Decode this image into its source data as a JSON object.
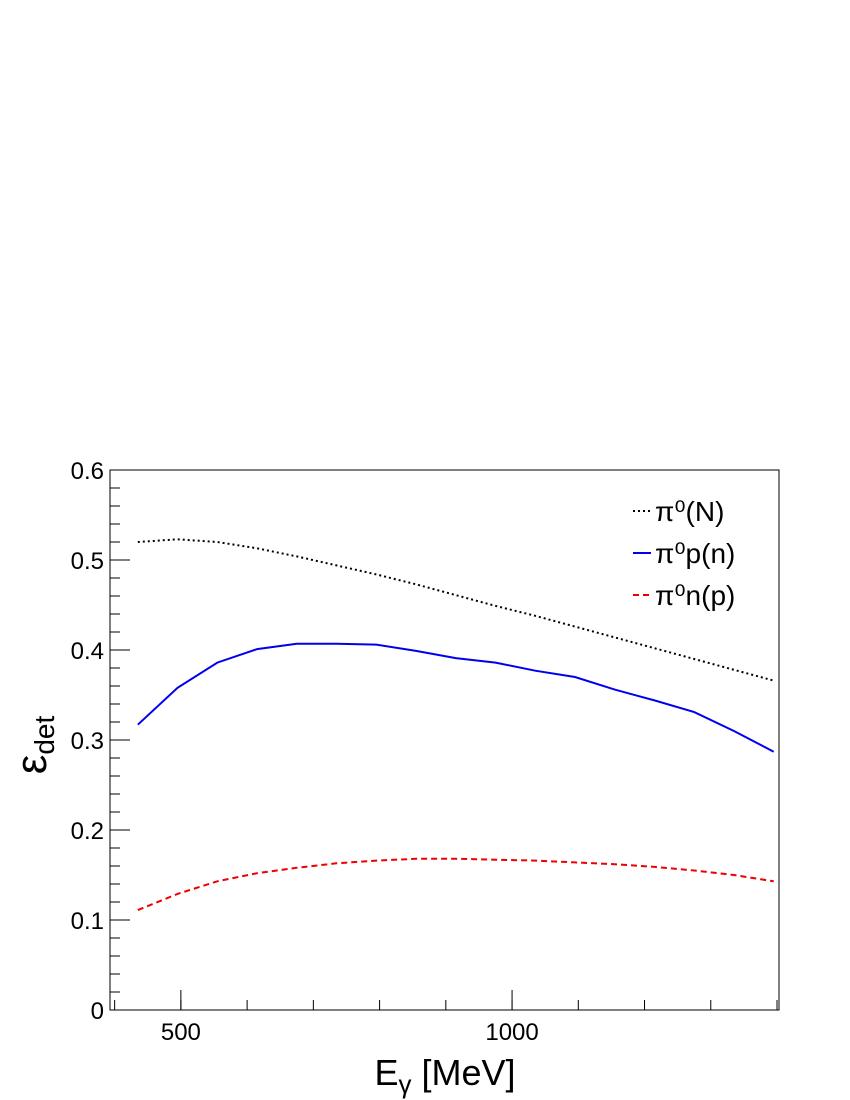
{
  "chart_data": {
    "type": "line",
    "x": [
      435,
      495,
      555,
      615,
      675,
      735,
      795,
      855,
      915,
      975,
      1035,
      1095,
      1155,
      1215,
      1275,
      1335,
      1395
    ],
    "series": [
      {
        "name": "π⁰(N)",
        "color": "#000000",
        "dash": "dotted",
        "values": [
          0.52,
          0.523,
          0.52,
          0.513,
          0.504,
          0.494,
          0.484,
          0.473,
          0.461,
          0.449,
          0.438,
          0.426,
          0.414,
          0.402,
          0.39,
          0.378,
          0.366
        ]
      },
      {
        "name": "π⁰p(n)",
        "color": "#0000ee",
        "dash": "solid",
        "values": [
          0.317,
          0.358,
          0.386,
          0.401,
          0.407,
          0.407,
          0.406,
          0.399,
          0.391,
          0.386,
          0.377,
          0.37,
          0.356,
          0.344,
          0.331,
          0.31,
          0.287
        ]
      },
      {
        "name": "π⁰n(p)",
        "color": "#ee0000",
        "dash": "dashed",
        "values": [
          0.111,
          0.129,
          0.143,
          0.152,
          0.158,
          0.163,
          0.166,
          0.168,
          0.168,
          0.167,
          0.166,
          0.164,
          0.162,
          0.159,
          0.155,
          0.15,
          0.143
        ]
      }
    ],
    "xlabel": {
      "symbol": "E",
      "subscript": "γ",
      "unit": " [MeV]"
    },
    "ylabel": {
      "symbol": "ε",
      "subscript": "det"
    },
    "xlim": [
      393,
      1403
    ],
    "ylim": [
      0,
      0.6
    ],
    "xticks": [
      500,
      1000
    ],
    "yticks": [
      0,
      0.1,
      0.2,
      0.3,
      0.4,
      0.5,
      0.6
    ],
    "legend": "top-right"
  }
}
